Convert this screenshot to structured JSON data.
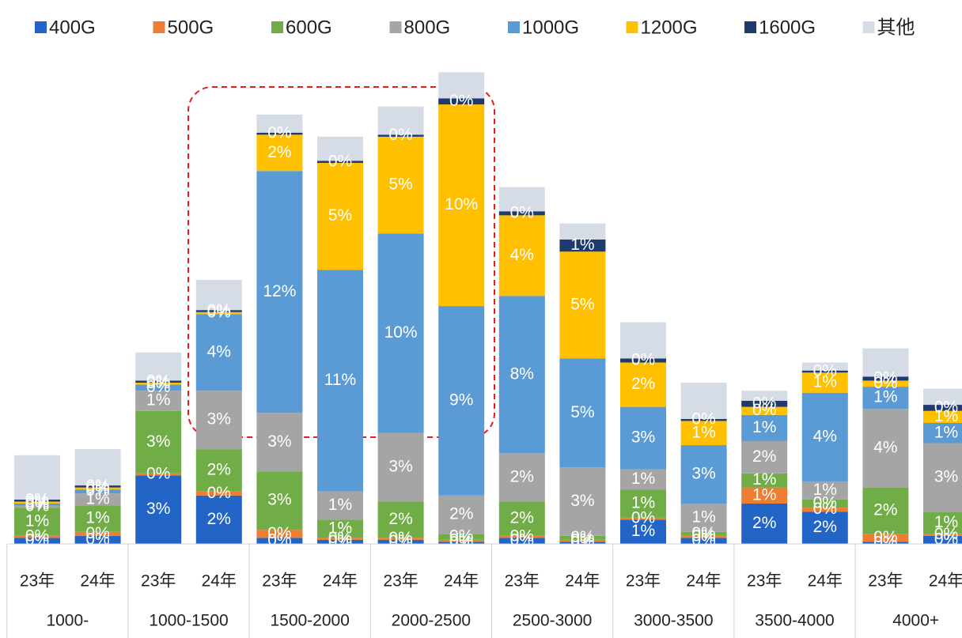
{
  "chart_data": {
    "type": "stacked_bar",
    "categories": [
      "23年",
      "24年",
      "23年",
      "24年",
      "23年",
      "24年",
      "23年",
      "24年",
      "23年",
      "24年",
      "23年",
      "24年",
      "23年",
      "24年",
      "23年",
      "24年"
    ],
    "groups": [
      "1000-",
      "1000-1500",
      "1500-2000",
      "2000-2500",
      "2500-3000",
      "3000-3500",
      "3500-4000",
      "4000+"
    ],
    "series": [
      {
        "name": "400G",
        "color": "#2365c6",
        "values": [
          0.3,
          0.4,
          3.4,
          2.4,
          0.3,
          0.2,
          0.2,
          0.1,
          0.3,
          0.1,
          1.2,
          0.3,
          2.0,
          1.6,
          0.1,
          0.4
        ],
        "value_labels": [
          "0%",
          "0%",
          "3%",
          "2%",
          "0%",
          "0%",
          "0%",
          "0%",
          "0%",
          "0%",
          "1%",
          "0%",
          "2%",
          "2%",
          "0%",
          "0%"
        ]
      },
      {
        "name": "500G",
        "color": "#ed7d31",
        "values": [
          0.1,
          0.2,
          0.1,
          0.2,
          0.4,
          0.1,
          0.1,
          0.1,
          0.1,
          0.1,
          0.1,
          0.1,
          0.8,
          0.2,
          0.4,
          0.1
        ],
        "value_labels": [
          "0%",
          "0%",
          "0%",
          "0%",
          "0%",
          "0%",
          "0%",
          "0%",
          "0%",
          "0%",
          "0%",
          "0%",
          "1%",
          "0%",
          "0%",
          "0%"
        ]
      },
      {
        "name": "600G",
        "color": "#70ad47",
        "values": [
          1.4,
          1.3,
          3.1,
          2.1,
          2.9,
          0.9,
          1.8,
          0.3,
          1.7,
          0.2,
          1.4,
          0.2,
          0.7,
          0.4,
          2.3,
          1.1
        ],
        "value_labels": [
          "1%",
          "1%",
          "3%",
          "2%",
          "3%",
          "1%",
          "2%",
          "0%",
          "2%",
          "0%",
          "1%",
          "0%",
          "1%",
          "0%",
          "2%",
          "1%"
        ]
      },
      {
        "name": "800G",
        "color": "#a5a5a5",
        "values": [
          0.1,
          0.6,
          1.0,
          2.9,
          2.9,
          1.4,
          3.4,
          1.9,
          2.4,
          3.4,
          1.0,
          1.4,
          1.6,
          0.9,
          3.9,
          3.4
        ],
        "value_labels": [
          "0%",
          "1%",
          "1%",
          "3%",
          "3%",
          "1%",
          "3%",
          "2%",
          "2%",
          "3%",
          "1%",
          "1%",
          "2%",
          "1%",
          "4%",
          "3%"
        ]
      },
      {
        "name": "1000G",
        "color": "#5b9bd5",
        "values": [
          0.1,
          0.2,
          0.3,
          3.8,
          12.0,
          11.0,
          9.9,
          9.4,
          7.8,
          5.4,
          3.1,
          2.9,
          1.3,
          4.4,
          1.1,
          1.0
        ],
        "value_labels": [
          "0%",
          "0%",
          "0%",
          "4%",
          "12%",
          "11%",
          "10%",
          "9%",
          "8%",
          "5%",
          "3%",
          "3%",
          "1%",
          "4%",
          "1%",
          "1%"
        ]
      },
      {
        "name": "1200G",
        "color": "#ffc000",
        "values": [
          0.1,
          0.1,
          0.1,
          0.1,
          1.8,
          5.3,
          4.8,
          10.0,
          4.0,
          5.3,
          2.2,
          1.2,
          0.4,
          1.0,
          0.3,
          0.6
        ],
        "value_labels": [
          "0%",
          "0%",
          "0%",
          "0%",
          "2%",
          "5%",
          "5%",
          "10%",
          "4%",
          "5%",
          "2%",
          "1%",
          "0%",
          "1%",
          "0%",
          "1%"
        ]
      },
      {
        "name": "1600G",
        "color": "#1f3a6e",
        "values": [
          0.1,
          0.1,
          0.1,
          0.1,
          0.1,
          0.1,
          0.1,
          0.3,
          0.2,
          0.6,
          0.2,
          0.1,
          0.3,
          0.1,
          0.2,
          0.3
        ],
        "value_labels": [
          "0%",
          "0%",
          "0%",
          "0%",
          "0%",
          "0%",
          "0%",
          "0%",
          "0%",
          "1%",
          "0%",
          "0%",
          "0%",
          "0%",
          "0%",
          "0%"
        ]
      },
      {
        "name": "其他",
        "color": "#d6dce5",
        "values": [
          2.2,
          1.8,
          1.4,
          1.5,
          0.9,
          1.2,
          1.4,
          1.3,
          1.2,
          0.8,
          1.8,
          1.8,
          0.5,
          0.4,
          1.4,
          0.8
        ]
      }
    ]
  }
}
